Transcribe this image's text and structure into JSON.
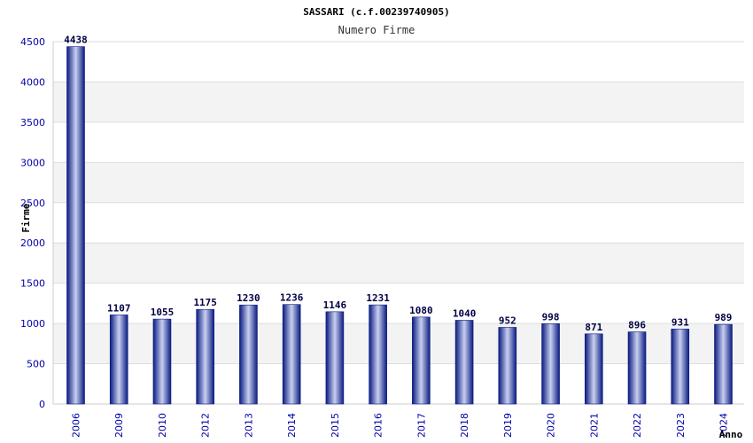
{
  "chart_data": {
    "type": "bar",
    "title": "SASSARI (c.f.00239740905)",
    "subtitle": "Numero Firme",
    "xlabel": "Anno",
    "ylabel": "Firme",
    "categories": [
      "2006",
      "2009",
      "2010",
      "2012",
      "2013",
      "2014",
      "2015",
      "2016",
      "2017",
      "2018",
      "2019",
      "2020",
      "2021",
      "2022",
      "2023",
      "2024"
    ],
    "values": [
      4438,
      1107,
      1055,
      1175,
      1230,
      1236,
      1146,
      1231,
      1080,
      1040,
      952,
      998,
      871,
      896,
      931,
      989
    ],
    "data_labels": [
      "4438",
      "1107",
      "1055",
      "1175",
      "1230",
      "1236",
      "1146",
      "1231",
      "1080",
      "1040",
      "952",
      "998",
      "871",
      "896",
      "931",
      "989"
    ],
    "yticks": [
      0,
      500,
      1000,
      1500,
      2000,
      2500,
      3000,
      3500,
      4000,
      4500
    ],
    "ytick_labels": [
      "0",
      "500",
      "1000",
      "1500",
      "2000",
      "2500",
      "3000",
      "3500",
      "4000",
      "4500"
    ],
    "ylim": [
      0,
      4500
    ],
    "grid": true,
    "colors": {
      "bar_dark": "#0a1a80",
      "bar_light": "#c8d0f0",
      "band": "#f3f3f3",
      "grid": "#dddddd",
      "axis": "#cccccc",
      "tick_text": "#0000aa"
    }
  }
}
